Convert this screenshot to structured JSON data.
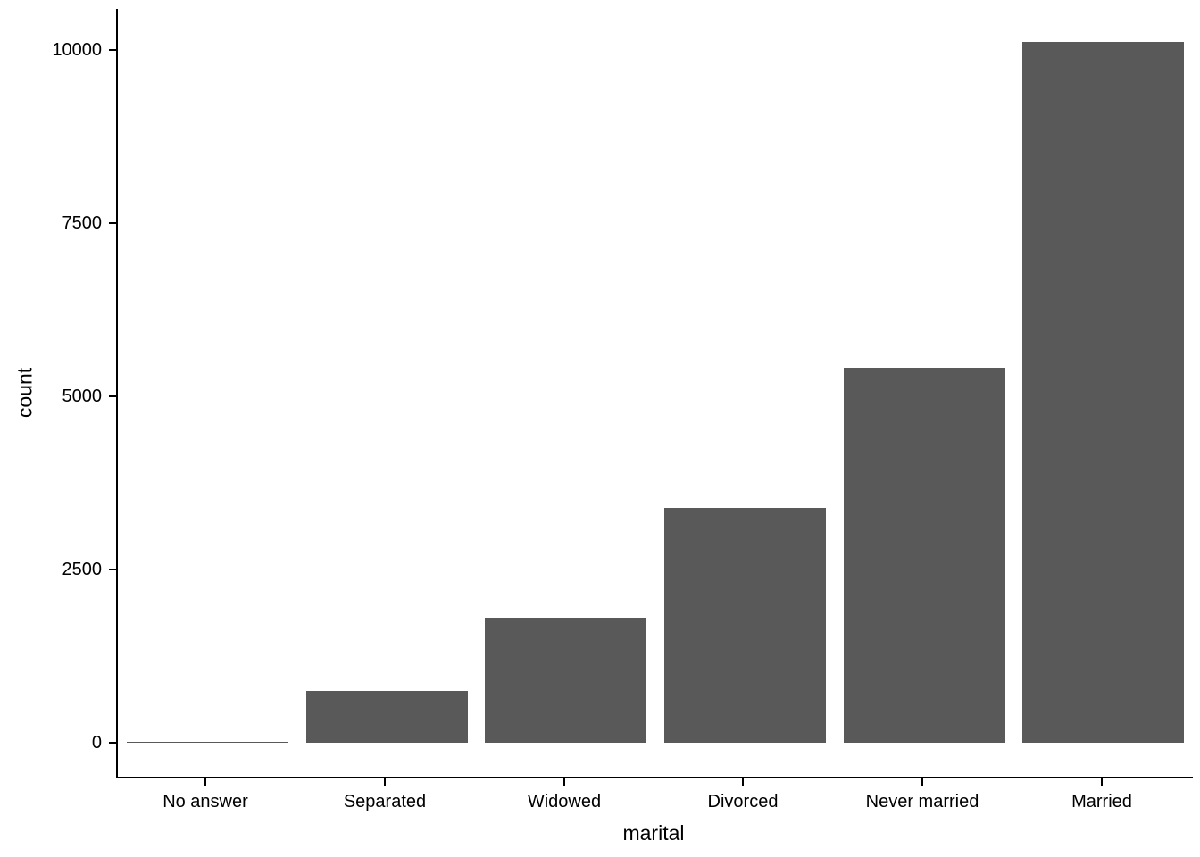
{
  "chart_data": {
    "type": "bar",
    "title": "",
    "xlabel": "marital",
    "ylabel": "count",
    "categories": [
      "No answer",
      "Separated",
      "Widowed",
      "Divorced",
      "Never married",
      "Married"
    ],
    "values": [
      17,
      743,
      1807,
      3383,
      5416,
      10117
    ],
    "ylim": [
      0,
      10500
    ],
    "yticks": [
      0,
      2500,
      5000,
      7500,
      10000
    ],
    "ytick_labels": [
      "0",
      "2500",
      "5000",
      "7500",
      "10000"
    ],
    "bar_color": "#595959",
    "axis_color": "#000000",
    "text_color": "#000000",
    "background": "#FFFFFF",
    "grid": false,
    "legend": "none"
  }
}
